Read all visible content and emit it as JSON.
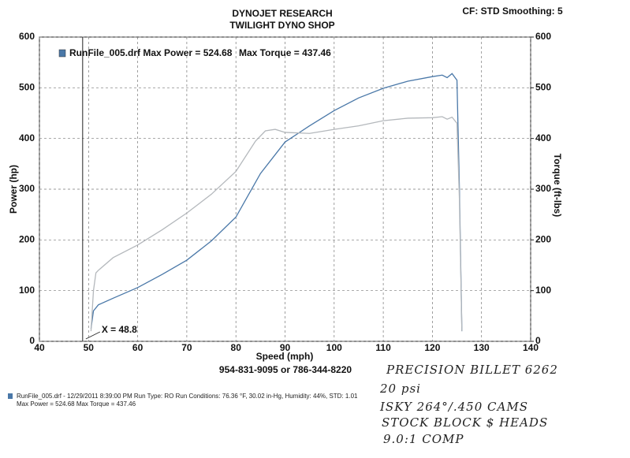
{
  "chart_data": {
    "type": "line",
    "header": [
      "DYNOJET RESEARCH",
      "TWILIGHT DYNO SHOP"
    ],
    "settings_text": "CF: STD  Smoothing: 5",
    "xlabel": "Speed (mph)",
    "ylabel": "Power (hp)",
    "y2label": "Torque (ft-lbs)",
    "phone": "954-831-9095 or 786-344-8220",
    "legend": [
      "RunFile_005.drf Max Power = 524.68",
      "Max Torque = 437.46"
    ],
    "cursor": {
      "value": 48.8,
      "label": "X = 48.8"
    },
    "xlim": [
      40,
      140
    ],
    "xticks": [
      40,
      50,
      60,
      70,
      80,
      90,
      100,
      110,
      120,
      130,
      140
    ],
    "ylim": [
      0,
      600
    ],
    "yticks": [
      0,
      100,
      200,
      300,
      400,
      500,
      600
    ],
    "y2lim": [
      0,
      600
    ],
    "y2ticks": [
      0,
      100,
      200,
      300,
      400,
      500,
      600
    ],
    "grid": true,
    "series": [
      {
        "color": "#4a78a8",
        "x": [
          50.5,
          51,
          52,
          55,
          60,
          65,
          70,
          75,
          80,
          85,
          90,
          95,
          100,
          105,
          110,
          115,
          120,
          122,
          123,
          124,
          125,
          125.5,
          126
        ],
        "values": [
          25,
          60,
          72,
          85,
          106,
          132,
          160,
          198,
          245,
          331,
          393,
          425,
          455,
          480,
          499,
          513,
          522,
          525,
          520,
          528,
          515,
          300,
          20
        ]
      },
      {
        "color": "#b4b8bc",
        "axis": "y2",
        "x": [
          50.5,
          51,
          51.5,
          52,
          55,
          60,
          65,
          70,
          75,
          80,
          84,
          86,
          88,
          90,
          95,
          100,
          105,
          110,
          115,
          120,
          122,
          123,
          124,
          125,
          125.5,
          126
        ],
        "values": [
          20,
          100,
          135,
          140,
          165,
          190,
          220,
          253,
          290,
          335,
          395,
          415,
          418,
          412,
          410,
          418,
          425,
          435,
          440,
          441,
          443,
          438,
          442,
          430,
          280,
          20
        ]
      }
    ],
    "footer": [
      "RunFile_005.drf - 12/29/2011 8:39:00 PM  Run Type: RO  Run Conditions: 76.36 °F, 30.02 in-Hg,  Humidity: 44%, STD: 1.01",
      "Max Power = 524.68  Max Torque = 437.46"
    ],
    "notes": [
      "PRECISION BILLET 6262",
      "20 psi",
      "ISKY 264°/.450 CAMS",
      "STOCK BLOCK $ HEADS",
      "9.0:1 COMP"
    ]
  }
}
